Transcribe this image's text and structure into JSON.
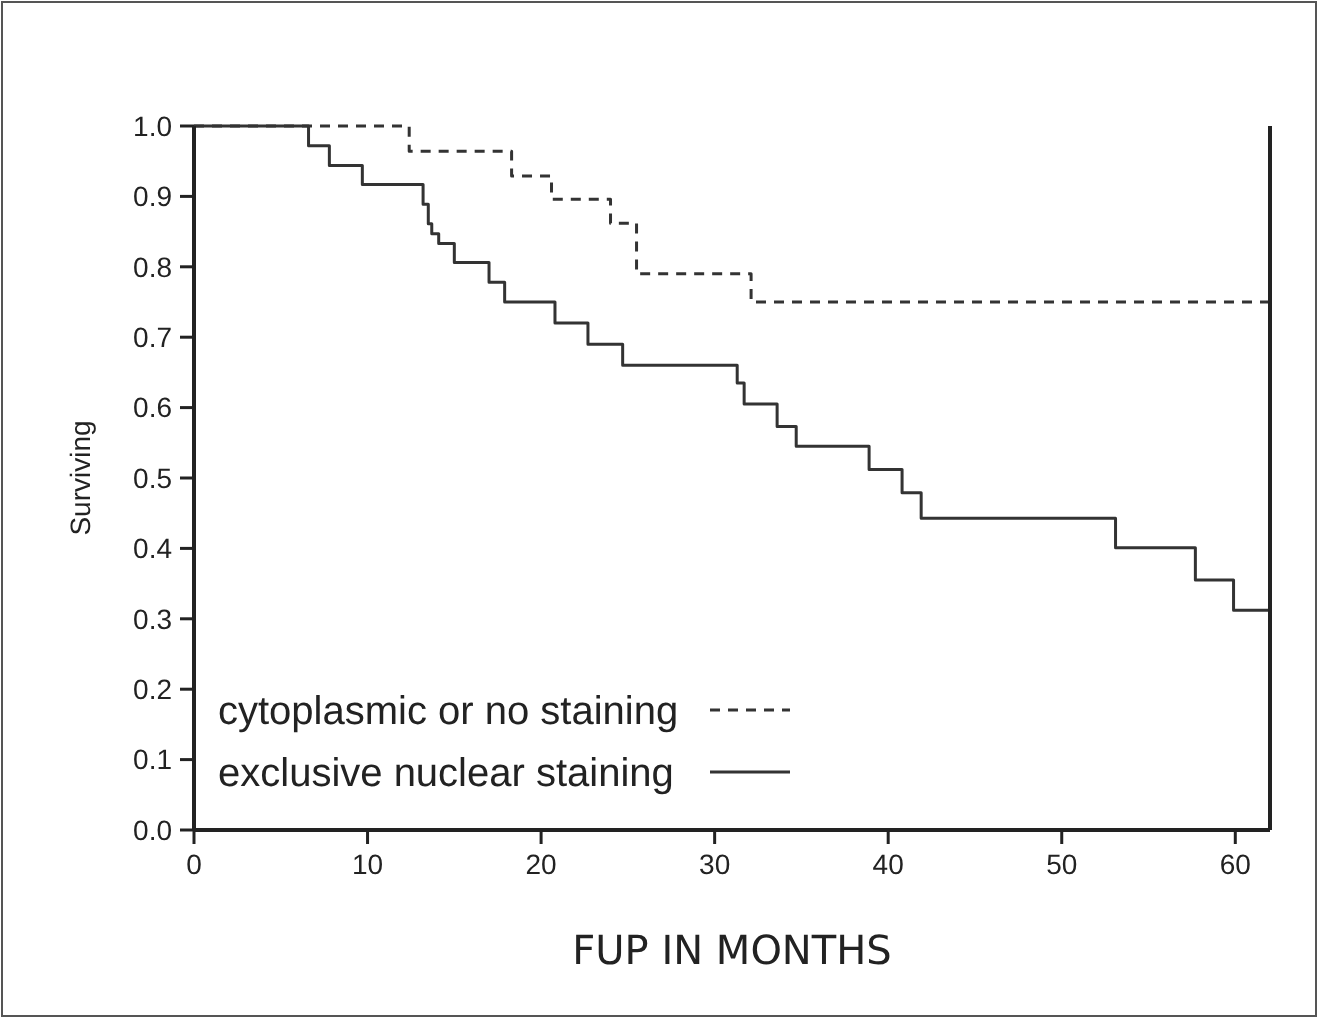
{
  "chart_data": {
    "type": "step",
    "xlabel": "FUP IN MONTHS",
    "ylabel": "Surviving",
    "xlim": [
      0,
      62
    ],
    "ylim": [
      0,
      1
    ],
    "xticks": [
      0,
      10,
      20,
      30,
      40,
      50,
      60
    ],
    "yticks": [
      {
        "value": 0,
        "label": "0.0"
      },
      {
        "value": 0.1,
        "label": "0.1"
      },
      {
        "value": 0.2,
        "label": "0.2"
      },
      {
        "value": 0.3,
        "label": "0.3"
      },
      {
        "value": 0.4,
        "label": "0.4"
      },
      {
        "value": 0.5,
        "label": "0.5"
      },
      {
        "value": 0.6,
        "label": "0.6"
      },
      {
        "value": 0.7,
        "label": "0.7"
      },
      {
        "value": 0.8,
        "label": "0.8"
      },
      {
        "value": 0.9,
        "label": "0.9"
      },
      {
        "value": 1,
        "label": "1.0"
      }
    ],
    "grid": false,
    "legend": "bottom left",
    "marker": "none",
    "series": [
      {
        "name": "cytoplasmic or no staining",
        "color": "#333333",
        "line_style": "dashed",
        "x": [
          0,
          12.4,
          18.3,
          20.6,
          24.0,
          25.5,
          32.1,
          62
        ],
        "values": [
          1,
          0.964,
          0.929,
          0.896,
          0.862,
          0.79,
          0.75,
          0.75
        ]
      },
      {
        "name": "exclusive nuclear staining",
        "color": "#333333",
        "line_style": "solid",
        "x": [
          0,
          6.6,
          7.8,
          9.7,
          13.2,
          13.5,
          13.7,
          14.1,
          15.0,
          17.0,
          17.9,
          20.8,
          22.7,
          24.7,
          31.3,
          31.7,
          33.6,
          34.7,
          38.9,
          40.8,
          41.9,
          53.1,
          57.7,
          59.9,
          62
        ],
        "values": [
          1,
          0.972,
          0.944,
          0.917,
          0.889,
          0.861,
          0.847,
          0.833,
          0.806,
          0.778,
          0.75,
          0.72,
          0.69,
          0.66,
          0.635,
          0.605,
          0.573,
          0.545,
          0.512,
          0.479,
          0.443,
          0.401,
          0.355,
          0.312,
          0.312
        ]
      }
    ]
  }
}
